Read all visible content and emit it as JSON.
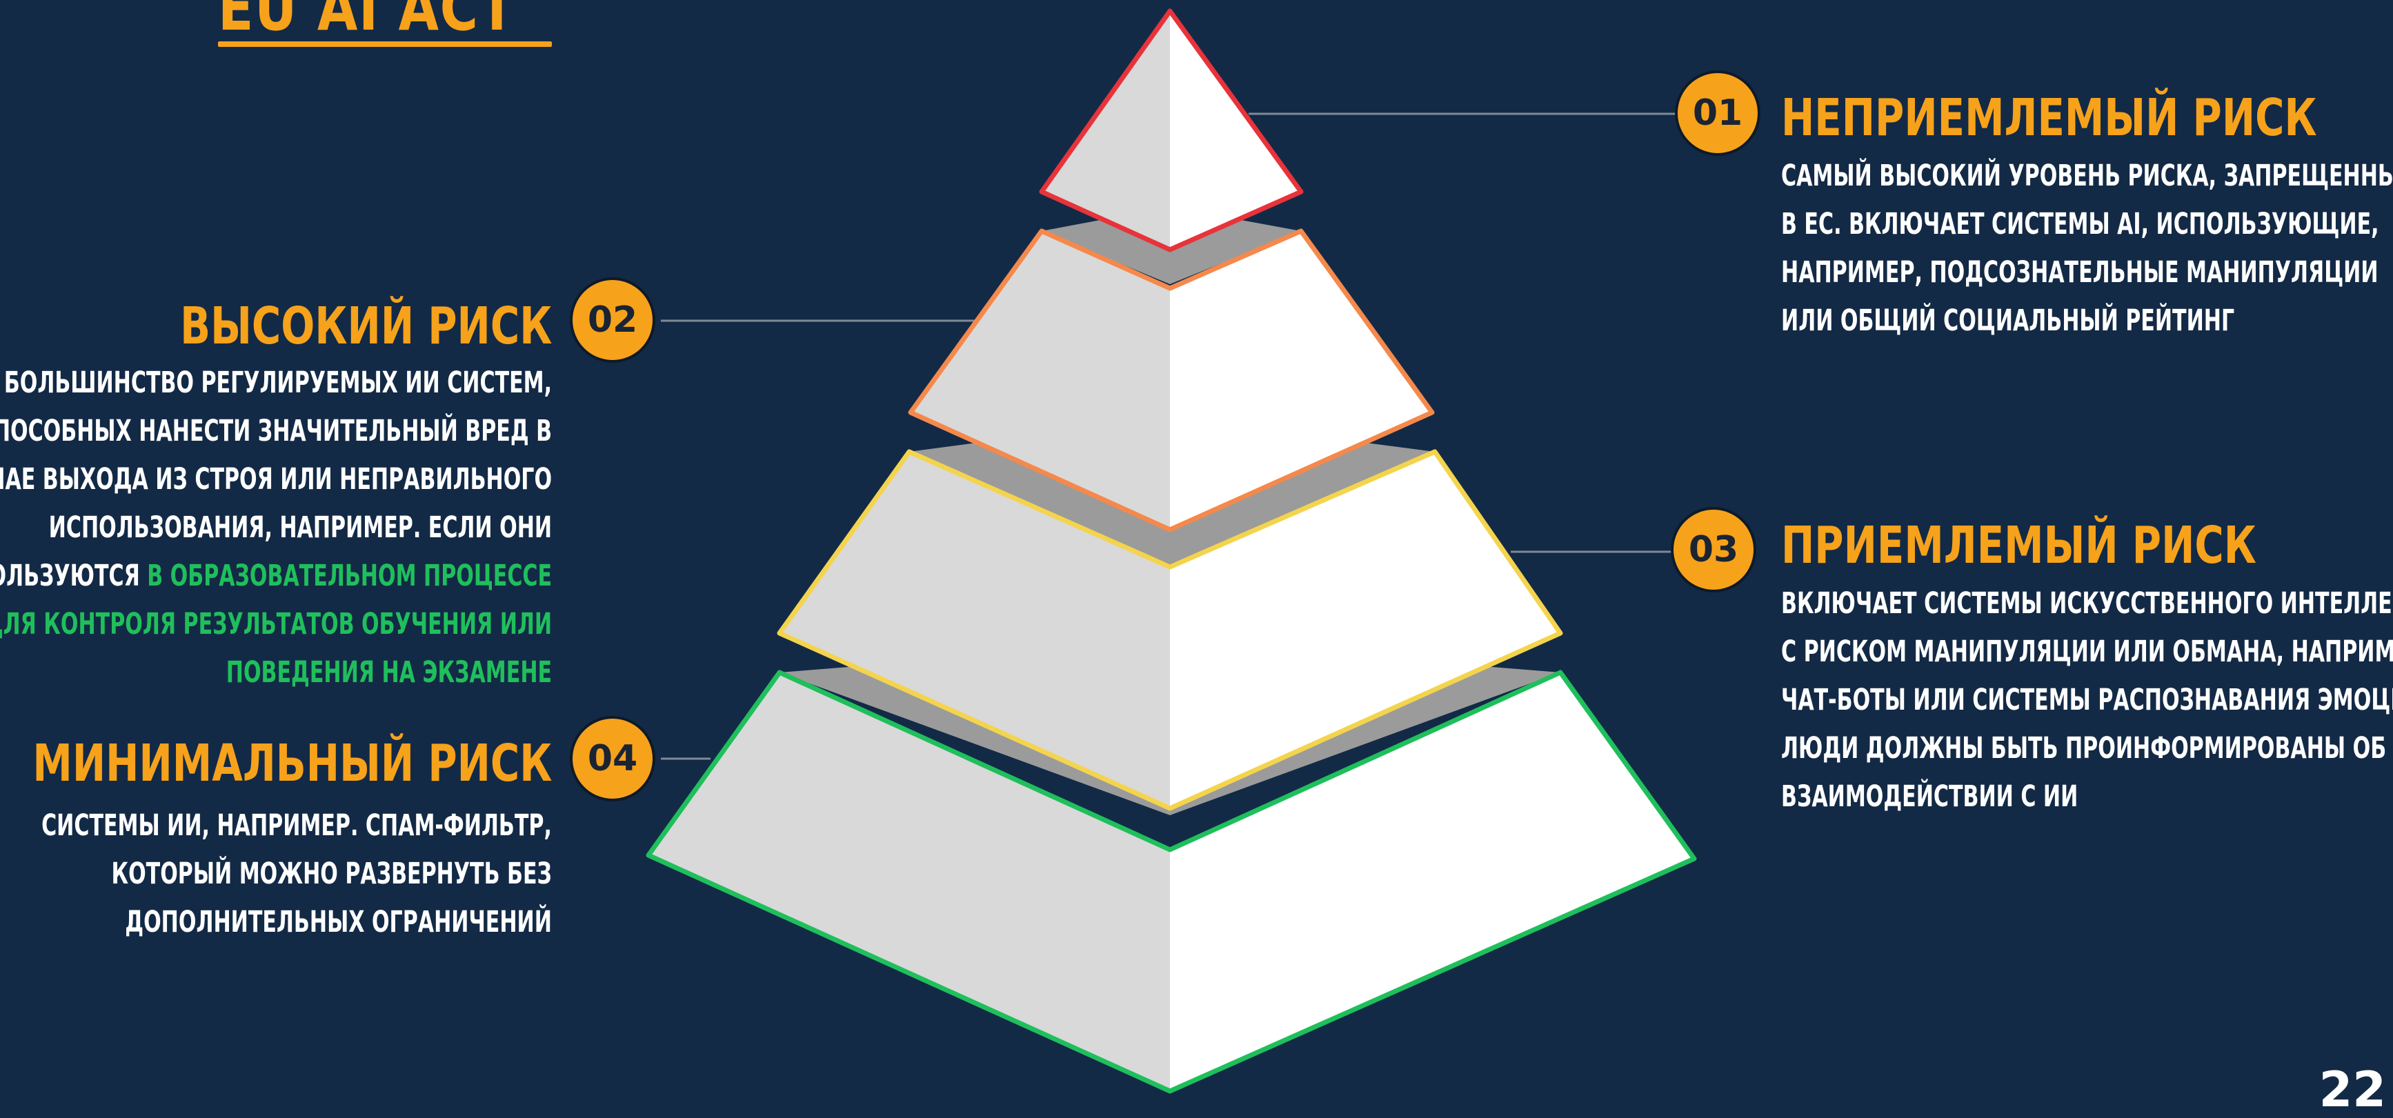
{
  "title": "EU AI ACT",
  "page_number": "22",
  "colors": {
    "background": "#132a46",
    "accent": "#f7a21b",
    "highlight_text": "#1fbf5c",
    "tier_unacceptable": "#e8333a",
    "tier_high": "#f5894b",
    "tier_limited": "#f4d44c",
    "tier_minimal": "#1fbf5c"
  },
  "levels": [
    {
      "number": "01",
      "title": "НЕПРИЕМЛЕМЫЙ РИСК",
      "lines": [
        "САМЫЙ ВЫСОКИЙ УРОВЕНЬ РИСКА, ЗАПРЕЩЕННЫЙ",
        "В ЕС. ВКЛЮЧАЕТ СИСТЕМЫ AI, ИСПОЛЬЗУЮЩИЕ,",
        "НАПРИМЕР, ПОДСОЗНАТЕЛЬНЫЕ МАНИПУЛЯЦИИ",
        "ИЛИ ОБЩИЙ СОЦИАЛЬНЫЙ РЕЙТИНГ"
      ]
    },
    {
      "number": "02",
      "title": "ВЫСОКИЙ РИСК",
      "lines": [
        "БОЛЬШИНСТВО РЕГУЛИРУЕМЫХ ИИ СИСТЕМ,",
        "СПОСОБНЫХ НАНЕСТИ ЗНАЧИТЕЛЬНЫЙ ВРЕД В",
        "СЛУЧАЕ ВЫХОДА ИЗ СТРОЯ ИЛИ НЕПРАВИЛЬНОГО",
        "ИСПОЛЬЗОВАНИЯ, НАПРИМЕР. ЕСЛИ ОНИ"
      ],
      "line5_prefix": "ИСПОЛЬЗУЮТСЯ ",
      "line5_highlight": "В ОБРАЗОВАТЕЛЬНОМ ПРОЦЕССЕ",
      "highlight_lines": [
        "ДЛЯ КОНТРОЛЯ РЕЗУЛЬТАТОВ ОБУЧЕНИЯ ИЛИ",
        "ПОВЕДЕНИЯ НА ЭКЗАМЕНЕ"
      ]
    },
    {
      "number": "03",
      "title": "ПРИЕМЛЕМЫЙ РИСК",
      "lines": [
        "ВКЛЮЧАЕТ СИСТЕМЫ ИСКУССТВЕННОГО ИНТЕЛЛЕКТА",
        "С РИСКОМ МАНИПУЛЯЦИИ ИЛИ ОБМАНА, НАПРИМЕР,",
        "ЧАТ-БОТЫ ИЛИ СИСТЕМЫ РАСПОЗНАВАНИЯ ЭМОЦИЙ.",
        "ЛЮДИ ДОЛЖНЫ БЫТЬ ПРОИНФОРМИРОВАНЫ ОБ ИХ",
        "ВЗАИМОДЕЙСТВИИ С ИИ"
      ]
    },
    {
      "number": "04",
      "title": "МИНИМАЛЬНЫЙ РИСК",
      "lines": [
        "СИСТЕМЫ ИИ, НАПРИМЕР. СПАМ-ФИЛЬТР,",
        "КОТОРЫЙ МОЖНО РАЗВЕРНУТЬ БЕЗ",
        "ДОПОЛНИТЕЛЬНЫХ ОГРАНИЧЕНИЙ"
      ]
    }
  ]
}
